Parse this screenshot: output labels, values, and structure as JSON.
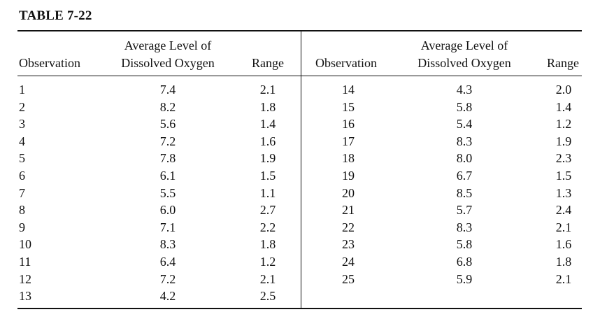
{
  "caption": "TABLE 7-22",
  "headers": {
    "observation": "Observation",
    "avg_line1": "Average Level of",
    "avg_line2": "Dissolved Oxygen",
    "range": "Range"
  },
  "left_rows": [
    {
      "obs": "1",
      "avg": "7.4",
      "range": "2.1"
    },
    {
      "obs": "2",
      "avg": "8.2",
      "range": "1.8"
    },
    {
      "obs": "3",
      "avg": "5.6",
      "range": "1.4"
    },
    {
      "obs": "4",
      "avg": "7.2",
      "range": "1.6"
    },
    {
      "obs": "5",
      "avg": "7.8",
      "range": "1.9"
    },
    {
      "obs": "6",
      "avg": "6.1",
      "range": "1.5"
    },
    {
      "obs": "7",
      "avg": "5.5",
      "range": "1.1"
    },
    {
      "obs": "8",
      "avg": "6.0",
      "range": "2.7"
    },
    {
      "obs": "9",
      "avg": "7.1",
      "range": "2.2"
    },
    {
      "obs": "10",
      "avg": "8.3",
      "range": "1.8"
    },
    {
      "obs": "11",
      "avg": "6.4",
      "range": "1.2"
    },
    {
      "obs": "12",
      "avg": "7.2",
      "range": "2.1"
    },
    {
      "obs": "13",
      "avg": "4.2",
      "range": "2.5"
    }
  ],
  "right_rows": [
    {
      "obs": "14",
      "avg": "4.3",
      "range": "2.0"
    },
    {
      "obs": "15",
      "avg": "5.8",
      "range": "1.4"
    },
    {
      "obs": "16",
      "avg": "5.4",
      "range": "1.2"
    },
    {
      "obs": "17",
      "avg": "8.3",
      "range": "1.9"
    },
    {
      "obs": "18",
      "avg": "8.0",
      "range": "2.3"
    },
    {
      "obs": "19",
      "avg": "6.7",
      "range": "1.5"
    },
    {
      "obs": "20",
      "avg": "8.5",
      "range": "1.3"
    },
    {
      "obs": "21",
      "avg": "5.7",
      "range": "2.4"
    },
    {
      "obs": "22",
      "avg": "8.3",
      "range": "2.1"
    },
    {
      "obs": "23",
      "avg": "5.8",
      "range": "1.6"
    },
    {
      "obs": "24",
      "avg": "6.8",
      "range": "1.8"
    },
    {
      "obs": "25",
      "avg": "5.9",
      "range": "2.1"
    }
  ]
}
